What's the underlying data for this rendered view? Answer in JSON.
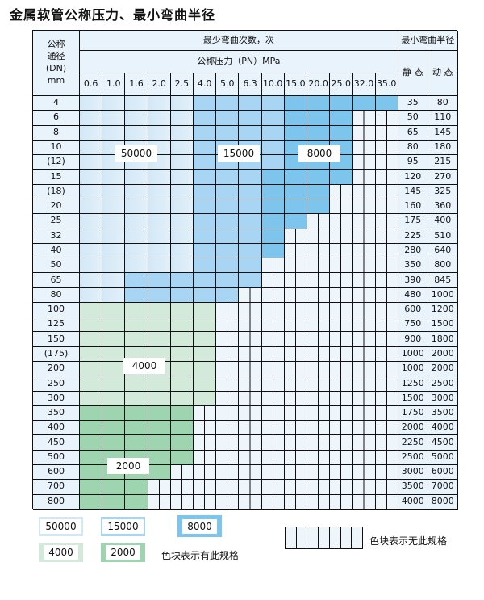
{
  "title": "金属软管公称压力、最小弯曲半径",
  "header": {
    "dn_label": "公称\n通径\n(DN)\nmm",
    "bend_count": "最少弯曲次数，次",
    "pressure": "公称压力（PN）MPa",
    "min_radius": "最小弯曲半径",
    "static": "静 态",
    "dynamic": "动 态",
    "pn": [
      "0.6",
      "1.0",
      "1.6",
      "2.0",
      "2.5",
      "4.0",
      "5.0",
      "6.3",
      "10.0",
      "15.0",
      "20.0",
      "25.0",
      "32.0",
      "35.0"
    ]
  },
  "colors": {
    "A": "#d3e8f7",
    "B": "#a8d5f3",
    "C": "#7ec5ee",
    "G1": "#d3eadb",
    "G2": "#9fd4b1",
    "X": "#eef5fb"
  },
  "categories": {
    "A": "50000",
    "B": "15000",
    "C": "8000",
    "G1": "4000",
    "G2": "2000",
    "X": "无此规格"
  },
  "rows": [
    {
      "dn": "4",
      "s": "35",
      "d": "80",
      "cells": "A A A A A B B B B C C C C C"
    },
    {
      "dn": "6",
      "s": "50",
      "d": "110",
      "cells": "A A A A A B B B B C C C X X"
    },
    {
      "dn": "8",
      "s": "65",
      "d": "145",
      "cells": "A A A A A B B B B C C C X X"
    },
    {
      "dn": "10",
      "s": "80",
      "d": "180",
      "cells": "A A A A A B B B B C C C X X"
    },
    {
      "dn": "(12)",
      "s": "95",
      "d": "215",
      "cells": "A A A A A B B B B C C C X X"
    },
    {
      "dn": "15",
      "s": "120",
      "d": "270",
      "cells": "A A A A A B B B C C C C X X"
    },
    {
      "dn": "(18)",
      "s": "145",
      "d": "325",
      "cells": "A A A A A B B B C C C X X X"
    },
    {
      "dn": "20",
      "s": "160",
      "d": "360",
      "cells": "A A A A A B B B C C C X X X"
    },
    {
      "dn": "25",
      "s": "175",
      "d": "400",
      "cells": "A A A A A B B B C C X X X X"
    },
    {
      "dn": "32",
      "s": "225",
      "d": "510",
      "cells": "A A A A A B B B C X X X X X"
    },
    {
      "dn": "40",
      "s": "280",
      "d": "640",
      "cells": "A A A A A B B B C X X X X X"
    },
    {
      "dn": "50",
      "s": "350",
      "d": "800",
      "cells": "A A A A A B B B X X X X X X"
    },
    {
      "dn": "65",
      "s": "390",
      "d": "845",
      "cells": "A A B B B B B B X X X X X X"
    },
    {
      "dn": "80",
      "s": "480",
      "d": "1000",
      "cells": "A A B B B B B X X X X X X X"
    },
    {
      "dn": "100",
      "s": "600",
      "d": "1200",
      "cells": "G1 G1 G1 G1 G1 G1 X X X X X X X X"
    },
    {
      "dn": "125",
      "s": "750",
      "d": "1500",
      "cells": "G1 G1 G1 G1 G1 G1 X X X X X X X X"
    },
    {
      "dn": "150",
      "s": "900",
      "d": "1800",
      "cells": "G1 G1 G1 G1 G1 G1 X X X X X X X X"
    },
    {
      "dn": "(175)",
      "s": "1000",
      "d": "2000",
      "cells": "G1 G1 G1 G1 G1 G1 X X X X X X X X"
    },
    {
      "dn": "200",
      "s": "1000",
      "d": "2000",
      "cells": "G1 G1 G1 G1 G1 G1 X X X X X X X X"
    },
    {
      "dn": "250",
      "s": "1250",
      "d": "2500",
      "cells": "G1 G1 G1 G1 G1 G1 X X X X X X X X"
    },
    {
      "dn": "300",
      "s": "1500",
      "d": "3000",
      "cells": "G1 G1 G1 G1 G1 G1 X X X X X X X X"
    },
    {
      "dn": "350",
      "s": "1750",
      "d": "3500",
      "cells": "G2 G2 G2 G2 G2 X X X X X X X X X"
    },
    {
      "dn": "400",
      "s": "2000",
      "d": "4000",
      "cells": "G2 G2 G2 G2 G2 X X X X X X X X X"
    },
    {
      "dn": "450",
      "s": "2250",
      "d": "4500",
      "cells": "G2 G2 G2 G2 G2 X X X X X X X X X"
    },
    {
      "dn": "500",
      "s": "2500",
      "d": "5000",
      "cells": "G2 G2 G2 G2 G2 X X X X X X X X X"
    },
    {
      "dn": "600",
      "s": "3000",
      "d": "6000",
      "cells": "G2 G2 G2 G2 X X X X X X X X X X"
    },
    {
      "dn": "700",
      "s": "3500",
      "d": "7000",
      "cells": "G2 G2 G2 X X X X X X X X X X X"
    },
    {
      "dn": "800",
      "s": "4000",
      "d": "8000",
      "cells": "G2 G2 G2 X X X X X X X X X X X"
    }
  ],
  "region_labels": {
    "a": "50000",
    "b": "15000",
    "c": "8000",
    "g1": "4000",
    "g2": "2000"
  },
  "legend": {
    "a": "50000",
    "b": "15000",
    "c": "8000",
    "g1": "4000",
    "g2": "2000",
    "has_spec": "色块表示有此规格",
    "no_spec": "色块表示无此规格"
  }
}
